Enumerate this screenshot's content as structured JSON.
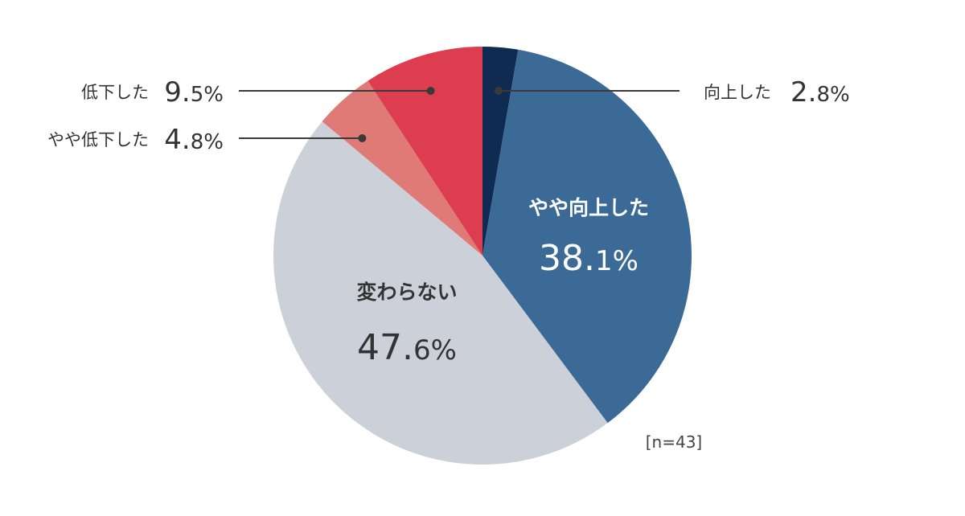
{
  "chart_data": {
    "type": "pie",
    "start": "12 o'clock",
    "direction": "clockwise",
    "slices": [
      {
        "name": "向上した",
        "value": 2.8,
        "unit": "%",
        "color": "#0f2b52",
        "label_style": "external-right"
      },
      {
        "name": "やや向上した",
        "value": 38.1,
        "unit": "%",
        "color": "#3c6a96",
        "label_style": "internal-white"
      },
      {
        "name": "変わらない",
        "value": 47.6,
        "unit": "%",
        "color": "#ccd1d9",
        "label_style": "internal-dark"
      },
      {
        "name": "やや低下した",
        "value": 4.8,
        "unit": "%",
        "color": "#e07a76",
        "label_style": "external-left"
      },
      {
        "name": "低下した",
        "value": 9.5,
        "unit": "%",
        "color": "#dc3e50",
        "label_style": "external-left"
      }
    ],
    "note": "[n=43]",
    "label_color": "#333333",
    "leader_color": "#3a3a3a"
  }
}
